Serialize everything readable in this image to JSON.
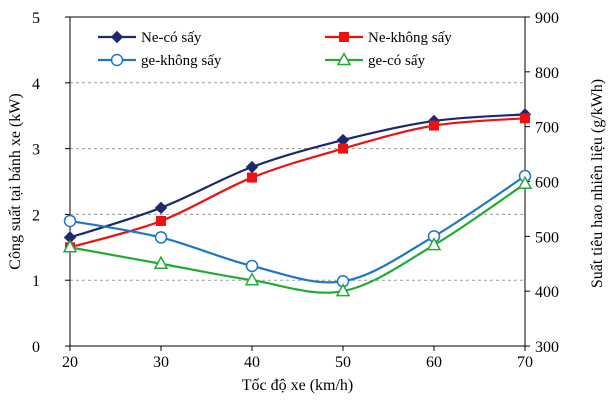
{
  "chart_data": {
    "type": "line",
    "title": "",
    "xlabel": "Tốc độ xe (km/h)",
    "ylabel": "Công suất tại bánh xe (kW)",
    "y2label": "Suất tiêu hao nhiên liệu (g/kWh)",
    "x": [
      20,
      30,
      40,
      50,
      60,
      70
    ],
    "xticks": [
      "20",
      "30",
      "40",
      "50",
      "60",
      "70"
    ],
    "xlim": [
      20,
      70
    ],
    "ylim": [
      0,
      5
    ],
    "yticks": [
      "0",
      "1",
      "2",
      "3",
      "4",
      "5"
    ],
    "y2lim": [
      300,
      900
    ],
    "y2ticks": [
      "300",
      "400",
      "500",
      "600",
      "700",
      "800",
      "900"
    ],
    "grid": "horizontal dashed",
    "legend_position": "top",
    "series": [
      {
        "name": "Ne-có sấy",
        "axis": "left",
        "color": "#1a2a6c",
        "marker": "diamond",
        "values": [
          1.65,
          2.1,
          2.72,
          3.13,
          3.42,
          3.52
        ]
      },
      {
        "name": "Ne-không sấy",
        "axis": "left",
        "color": "#ee1111",
        "marker": "square",
        "values": [
          1.5,
          1.9,
          2.56,
          3.0,
          3.35,
          3.46
        ]
      },
      {
        "name": "ge-không sấy",
        "axis": "right",
        "color": "#1f77c4",
        "marker": "circle-open",
        "values": [
          528,
          498,
          446,
          418,
          500,
          610
        ]
      },
      {
        "name": "ge-có sấy",
        "axis": "right",
        "color": "#22aa33",
        "marker": "triangle-open",
        "values": [
          480,
          450,
          420,
          400,
          484,
          596
        ]
      }
    ],
    "legend_order": [
      0,
      1,
      2,
      3
    ]
  }
}
